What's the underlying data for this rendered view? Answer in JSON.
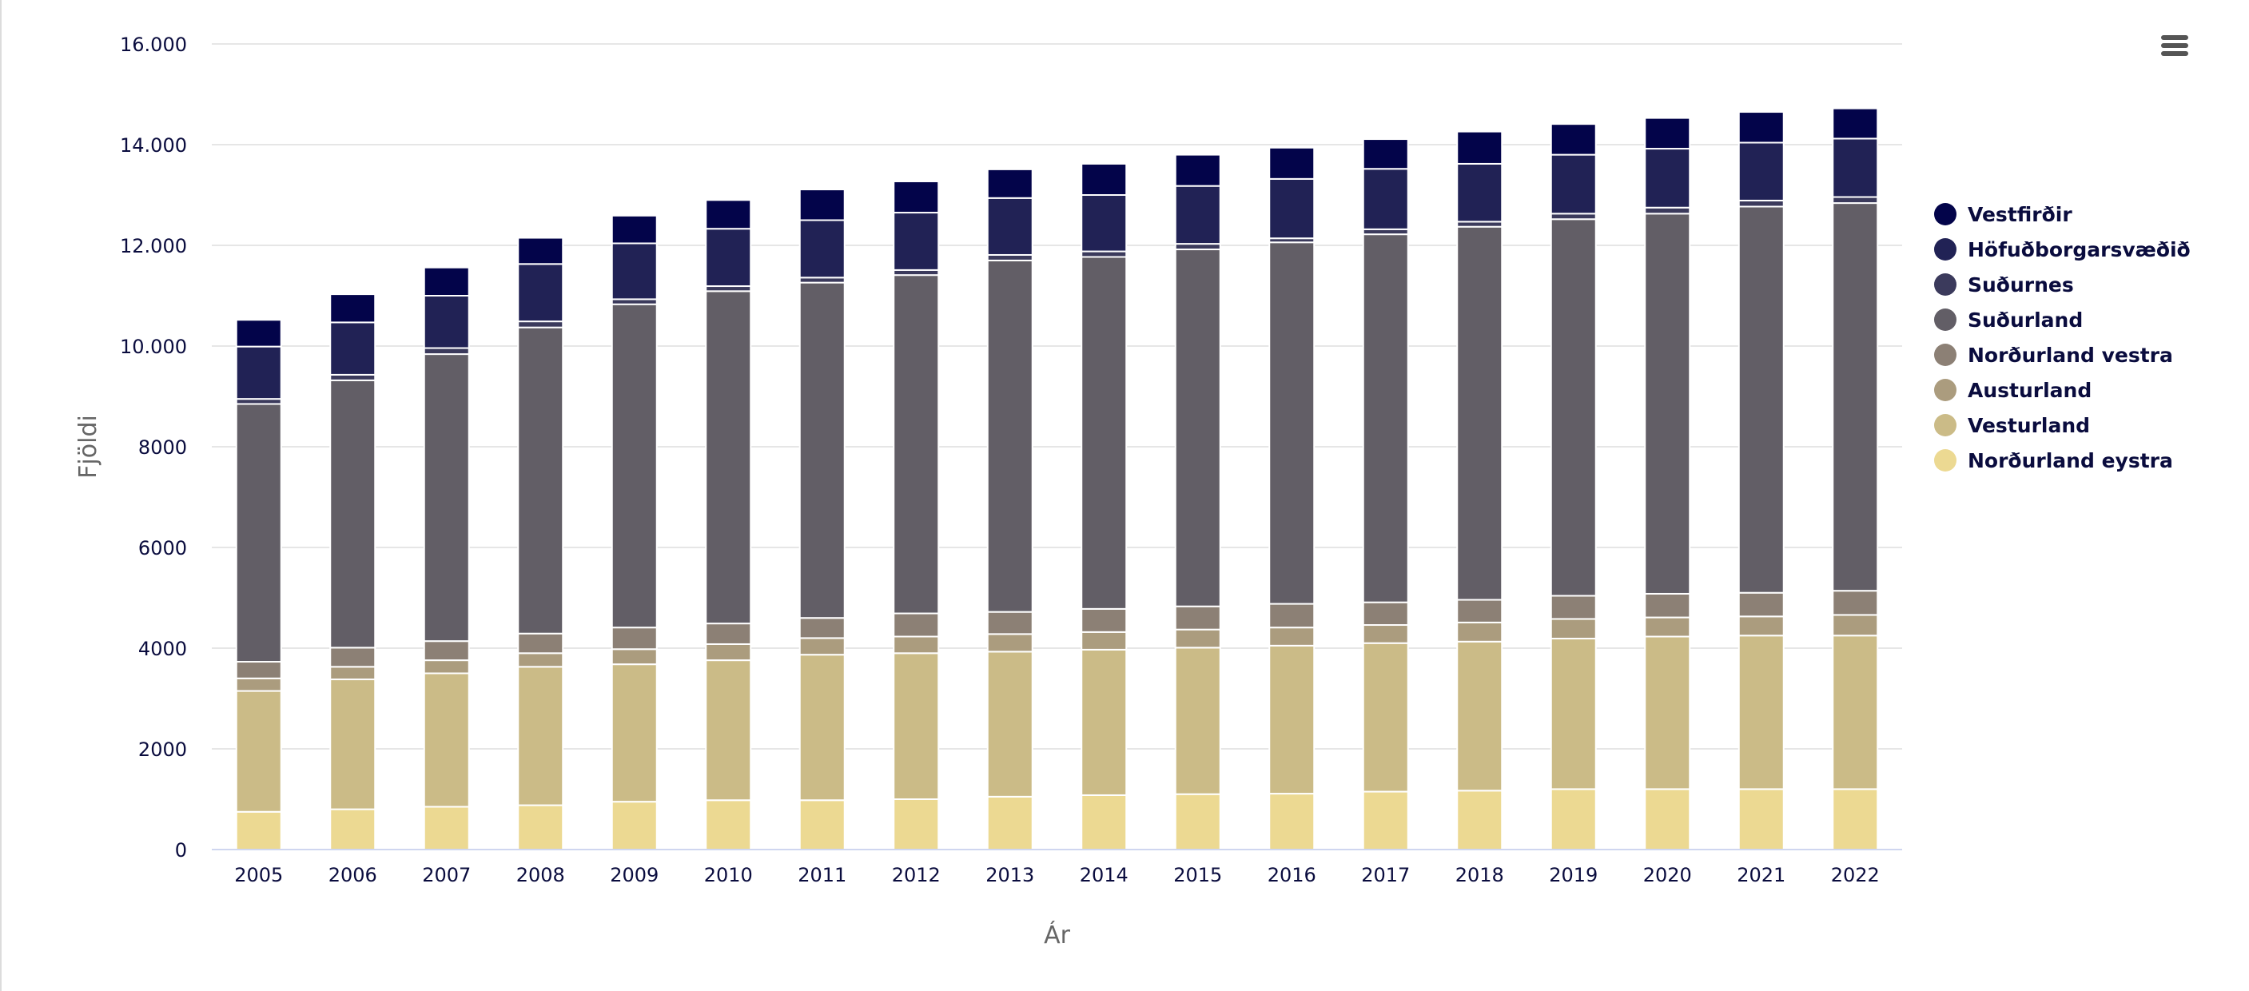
{
  "colors": {
    "series": [
      "#ecd992",
      "#cbbb87",
      "#ab9c7e",
      "#8c8075",
      "#625e66",
      "#3b3a5c",
      "#212255",
      "#03044a"
    ],
    "grid": "#e6e6e6",
    "axis_line": "#cfd6f0",
    "tick_text": "#0a0c3e",
    "title_text": "#666666",
    "legend_text": "#0a0c3e"
  },
  "toolbar": {
    "menu_icon": "hamburger-menu-icon"
  },
  "chart_data": {
    "type": "bar",
    "stacked": true,
    "title": "",
    "xlabel": "Ár",
    "ylabel": "Fjöldi",
    "ylim": [
      0,
      16000
    ],
    "yticks": [
      0,
      2000,
      4000,
      6000,
      8000,
      10000,
      12000,
      14000,
      16000
    ],
    "ytick_labels": [
      "0",
      "2000",
      "4000",
      "6000",
      "8000",
      "10.000",
      "12.000",
      "14.000",
      "16.000"
    ],
    "grid": true,
    "legend_position": "right",
    "categories": [
      "2005",
      "2006",
      "2007",
      "2008",
      "2009",
      "2010",
      "2011",
      "2012",
      "2013",
      "2014",
      "2015",
      "2016",
      "2017",
      "2018",
      "2019",
      "2020",
      "2021",
      "2022"
    ],
    "series": [
      {
        "name": "Norðurland eystra",
        "values": [
          750,
          800,
          850,
          880,
          950,
          980,
          980,
          1000,
          1050,
          1080,
          1100,
          1110,
          1150,
          1170,
          1200,
          1200,
          1200,
          1200
        ]
      },
      {
        "name": "Vesturland",
        "values": [
          2400,
          2580,
          2650,
          2750,
          2730,
          2780,
          2890,
          2900,
          2880,
          2890,
          2910,
          2940,
          2950,
          2960,
          2990,
          3030,
          3050,
          3050
        ]
      },
      {
        "name": "Austurland",
        "values": [
          250,
          250,
          260,
          270,
          300,
          320,
          330,
          330,
          350,
          350,
          360,
          360,
          360,
          380,
          390,
          380,
          380,
          410
        ]
      },
      {
        "name": "Norðurland vestra",
        "values": [
          330,
          380,
          380,
          390,
          430,
          410,
          400,
          460,
          440,
          460,
          460,
          470,
          450,
          450,
          460,
          470,
          470,
          480
        ]
      },
      {
        "name": "Suðurland",
        "values": [
          5120,
          5310,
          5700,
          6080,
          6420,
          6600,
          6660,
          6720,
          6980,
          6990,
          7090,
          7180,
          7310,
          7410,
          7480,
          7550,
          7670,
          7700
        ]
      },
      {
        "name": "Suðurnes",
        "values": [
          100,
          110,
          120,
          120,
          100,
          100,
          100,
          100,
          110,
          110,
          110,
          80,
          100,
          100,
          110,
          120,
          120,
          120
        ]
      },
      {
        "name": "Höfuðborgarsvæðið",
        "values": [
          1040,
          1040,
          1040,
          1140,
          1110,
          1140,
          1140,
          1140,
          1130,
          1120,
          1150,
          1180,
          1200,
          1150,
          1170,
          1170,
          1150,
          1160
        ]
      },
      {
        "name": "Vestfirðir",
        "values": [
          530,
          560,
          560,
          520,
          550,
          570,
          610,
          620,
          570,
          620,
          620,
          620,
          590,
          640,
          610,
          610,
          610,
          600
        ]
      }
    ]
  }
}
